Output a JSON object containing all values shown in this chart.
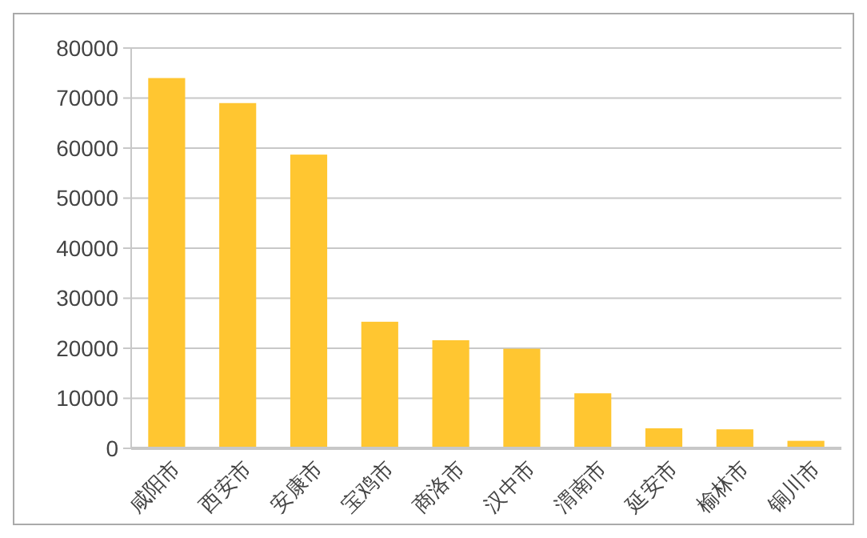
{
  "chart_data": {
    "type": "bar",
    "categories": [
      "咸阳市",
      "西安市",
      "安康市",
      "宝鸡市",
      "商洛市",
      "汉中市",
      "渭南市",
      "延安市",
      "榆林市",
      "铜川市"
    ],
    "values": [
      74000,
      69000,
      58700,
      25300,
      21600,
      19900,
      11000,
      4000,
      3800,
      1500
    ],
    "color": "#ffc631",
    "ylim": [
      0,
      80000
    ],
    "yticks": [
      0,
      10000,
      20000,
      30000,
      40000,
      50000,
      60000,
      70000,
      80000
    ],
    "grid": "y"
  }
}
